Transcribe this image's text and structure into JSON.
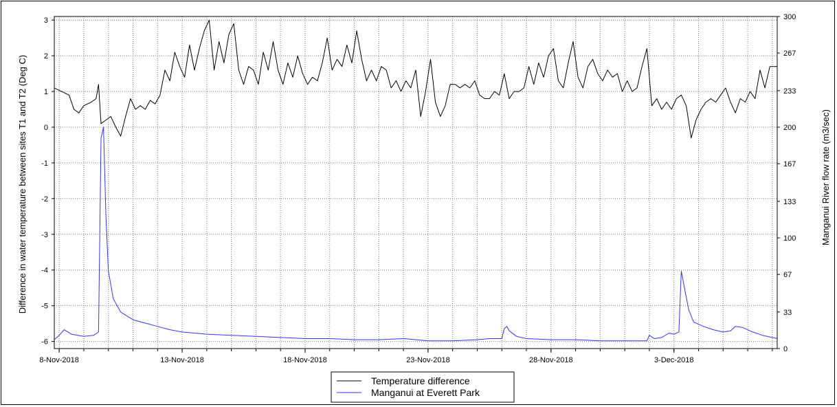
{
  "chart_data": {
    "type": "line",
    "title": "",
    "ylabel_left": "Difference in water temperature between sites T1 and T2 (Deg C)",
    "ylabel_right": "Manganui River flow rate (m3/sec)",
    "x_range_days": [
      7.8,
      37.2
    ],
    "x_tick_labels": [
      "8-Nov-2018",
      "13-Nov-2018",
      "18-Nov-2018",
      "23-Nov-2018",
      "28-Nov-2018",
      "3-Dec-2018"
    ],
    "x_tick_dates": [
      8,
      13,
      18,
      23,
      28,
      33
    ],
    "y_left_ticks": [
      3,
      2,
      1,
      0,
      -1,
      -2,
      -3,
      -4,
      -5,
      -6
    ],
    "y_right_ticks": [
      300,
      267,
      233,
      200,
      167,
      133,
      100,
      67,
      33,
      0
    ],
    "y_left_range": [
      -6.2,
      3.1
    ],
    "y_right_range": [
      0,
      300
    ],
    "grid": true,
    "legend_position": "bottom-center",
    "series": [
      {
        "name": "Temperature difference",
        "color": "#000000",
        "axis": "left",
        "points": [
          [
            7.8,
            1.1
          ],
          [
            8.1,
            1.0
          ],
          [
            8.4,
            0.9
          ],
          [
            8.6,
            0.5
          ],
          [
            8.8,
            0.4
          ],
          [
            9.0,
            0.6
          ],
          [
            9.3,
            0.7
          ],
          [
            9.5,
            0.8
          ],
          [
            9.6,
            1.2
          ],
          [
            9.7,
            0.1
          ],
          [
            9.9,
            0.2
          ],
          [
            10.1,
            0.3
          ],
          [
            10.3,
            0.0
          ],
          [
            10.5,
            -0.25
          ],
          [
            10.7,
            0.3
          ],
          [
            10.9,
            0.8
          ],
          [
            11.1,
            0.5
          ],
          [
            11.3,
            0.6
          ],
          [
            11.5,
            0.5
          ],
          [
            11.7,
            0.75
          ],
          [
            11.9,
            0.65
          ],
          [
            12.1,
            0.9
          ],
          [
            12.3,
            1.6
          ],
          [
            12.5,
            1.3
          ],
          [
            12.7,
            2.1
          ],
          [
            12.9,
            1.7
          ],
          [
            13.1,
            1.4
          ],
          [
            13.3,
            2.3
          ],
          [
            13.5,
            1.6
          ],
          [
            13.7,
            2.2
          ],
          [
            13.9,
            2.7
          ],
          [
            14.1,
            3.0
          ],
          [
            14.3,
            1.6
          ],
          [
            14.5,
            2.4
          ],
          [
            14.7,
            1.8
          ],
          [
            14.9,
            2.6
          ],
          [
            15.1,
            2.9
          ],
          [
            15.3,
            1.6
          ],
          [
            15.5,
            1.2
          ],
          [
            15.7,
            1.7
          ],
          [
            15.9,
            1.6
          ],
          [
            16.1,
            1.2
          ],
          [
            16.3,
            2.1
          ],
          [
            16.5,
            1.6
          ],
          [
            16.7,
            2.4
          ],
          [
            16.9,
            1.6
          ],
          [
            17.1,
            1.2
          ],
          [
            17.3,
            1.8
          ],
          [
            17.5,
            1.4
          ],
          [
            17.7,
            2.0
          ],
          [
            17.9,
            1.5
          ],
          [
            18.1,
            1.2
          ],
          [
            18.3,
            1.4
          ],
          [
            18.5,
            1.3
          ],
          [
            18.7,
            1.8
          ],
          [
            18.9,
            2.5
          ],
          [
            19.1,
            1.6
          ],
          [
            19.3,
            1.9
          ],
          [
            19.5,
            1.7
          ],
          [
            19.7,
            2.3
          ],
          [
            19.9,
            1.8
          ],
          [
            20.1,
            2.7
          ],
          [
            20.3,
            1.9
          ],
          [
            20.5,
            1.3
          ],
          [
            20.7,
            1.6
          ],
          [
            20.9,
            1.3
          ],
          [
            21.1,
            1.7
          ],
          [
            21.3,
            1.6
          ],
          [
            21.5,
            1.1
          ],
          [
            21.7,
            1.3
          ],
          [
            21.9,
            1.0
          ],
          [
            22.1,
            1.3
          ],
          [
            22.3,
            1.1
          ],
          [
            22.5,
            1.6
          ],
          [
            22.7,
            0.3
          ],
          [
            22.9,
            1.0
          ],
          [
            23.1,
            1.9
          ],
          [
            23.3,
            0.7
          ],
          [
            23.5,
            0.3
          ],
          [
            23.7,
            0.6
          ],
          [
            23.9,
            1.2
          ],
          [
            24.1,
            1.2
          ],
          [
            24.3,
            1.1
          ],
          [
            24.5,
            1.2
          ],
          [
            24.7,
            1.1
          ],
          [
            24.9,
            1.3
          ],
          [
            25.1,
            0.9
          ],
          [
            25.3,
            0.8
          ],
          [
            25.5,
            0.8
          ],
          [
            25.7,
            1.0
          ],
          [
            25.9,
            0.9
          ],
          [
            26.1,
            1.5
          ],
          [
            26.3,
            0.8
          ],
          [
            26.5,
            1.0
          ],
          [
            26.7,
            1.0
          ],
          [
            26.9,
            1.1
          ],
          [
            27.1,
            1.7
          ],
          [
            27.3,
            1.2
          ],
          [
            27.5,
            1.8
          ],
          [
            27.7,
            1.4
          ],
          [
            27.9,
            2.0
          ],
          [
            28.1,
            2.2
          ],
          [
            28.3,
            1.3
          ],
          [
            28.5,
            1.1
          ],
          [
            28.7,
            1.8
          ],
          [
            28.9,
            2.4
          ],
          [
            29.1,
            1.4
          ],
          [
            29.3,
            1.1
          ],
          [
            29.5,
            1.7
          ],
          [
            29.7,
            1.9
          ],
          [
            29.9,
            1.5
          ],
          [
            30.1,
            1.3
          ],
          [
            30.3,
            1.6
          ],
          [
            30.5,
            1.4
          ],
          [
            30.7,
            1.5
          ],
          [
            30.9,
            1.0
          ],
          [
            31.1,
            1.3
          ],
          [
            31.3,
            1.0
          ],
          [
            31.5,
            1.1
          ],
          [
            31.7,
            1.7
          ],
          [
            31.9,
            2.2
          ],
          [
            32.1,
            0.6
          ],
          [
            32.3,
            0.8
          ],
          [
            32.5,
            0.5
          ],
          [
            32.7,
            0.7
          ],
          [
            32.9,
            0.5
          ],
          [
            33.1,
            0.8
          ],
          [
            33.3,
            0.9
          ],
          [
            33.5,
            0.6
          ],
          [
            33.7,
            -0.3
          ],
          [
            33.9,
            0.2
          ],
          [
            34.1,
            0.5
          ],
          [
            34.3,
            0.7
          ],
          [
            34.5,
            0.8
          ],
          [
            34.7,
            0.7
          ],
          [
            34.9,
            0.9
          ],
          [
            35.1,
            1.1
          ],
          [
            35.3,
            0.7
          ],
          [
            35.5,
            0.4
          ],
          [
            35.7,
            0.8
          ],
          [
            35.9,
            0.7
          ],
          [
            36.1,
            1.0
          ],
          [
            36.3,
            0.8
          ],
          [
            36.5,
            1.6
          ],
          [
            36.7,
            1.1
          ],
          [
            36.9,
            1.7
          ],
          [
            37.2,
            1.7
          ]
        ]
      },
      {
        "name": "Manganui at Everett Park",
        "color": "#3333ff",
        "axis": "right",
        "points": [
          [
            7.8,
            8
          ],
          [
            8.0,
            12
          ],
          [
            8.2,
            17
          ],
          [
            8.5,
            13
          ],
          [
            9.0,
            11
          ],
          [
            9.4,
            12
          ],
          [
            9.6,
            15
          ],
          [
            9.7,
            190
          ],
          [
            9.8,
            200
          ],
          [
            9.9,
            120
          ],
          [
            10.0,
            70
          ],
          [
            10.2,
            45
          ],
          [
            10.5,
            33
          ],
          [
            11.0,
            26
          ],
          [
            11.5,
            23
          ],
          [
            12.0,
            20
          ],
          [
            12.5,
            17
          ],
          [
            13.0,
            15
          ],
          [
            14.0,
            13
          ],
          [
            15.0,
            12
          ],
          [
            16.0,
            11
          ],
          [
            17.0,
            10
          ],
          [
            18.0,
            9
          ],
          [
            19.0,
            9
          ],
          [
            20.0,
            8
          ],
          [
            21.0,
            8
          ],
          [
            22.0,
            9
          ],
          [
            22.5,
            8
          ],
          [
            23.0,
            7
          ],
          [
            24.0,
            7
          ],
          [
            25.0,
            8
          ],
          [
            25.5,
            9
          ],
          [
            26.0,
            9
          ],
          [
            26.1,
            18
          ],
          [
            26.2,
            20
          ],
          [
            26.3,
            16
          ],
          [
            26.6,
            11
          ],
          [
            27.0,
            9
          ],
          [
            28.0,
            8
          ],
          [
            29.0,
            8
          ],
          [
            30.0,
            7
          ],
          [
            31.0,
            7
          ],
          [
            31.9,
            7
          ],
          [
            32.0,
            12
          ],
          [
            32.2,
            9
          ],
          [
            32.5,
            10
          ],
          [
            32.8,
            14
          ],
          [
            33.0,
            13
          ],
          [
            33.2,
            15
          ],
          [
            33.3,
            70
          ],
          [
            33.4,
            58
          ],
          [
            33.6,
            35
          ],
          [
            33.8,
            24
          ],
          [
            34.2,
            20
          ],
          [
            34.6,
            17
          ],
          [
            35.0,
            15
          ],
          [
            35.3,
            16
          ],
          [
            35.5,
            20
          ],
          [
            35.8,
            19
          ],
          [
            36.2,
            15
          ],
          [
            36.6,
            12
          ],
          [
            37.0,
            10
          ],
          [
            37.2,
            9
          ]
        ]
      }
    ]
  },
  "legend": {
    "items": [
      {
        "label": "Temperature difference",
        "color": "#000000"
      },
      {
        "label": "Manganui at Everett Park",
        "color": "#3333ff"
      }
    ]
  }
}
